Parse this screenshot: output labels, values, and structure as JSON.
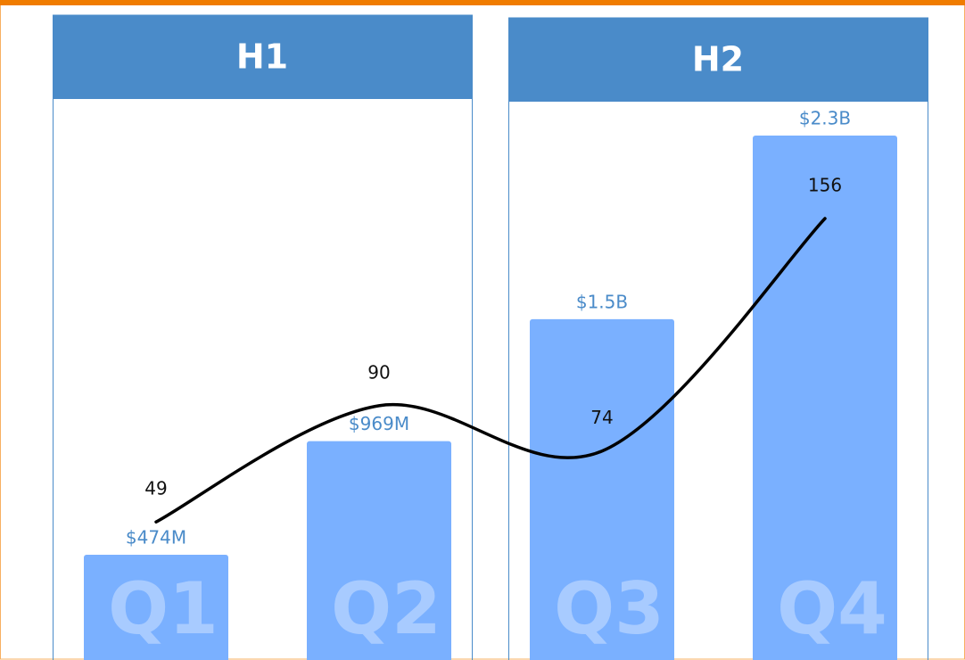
{
  "chart_data": {
    "type": "bar-line",
    "groups": [
      {
        "name": "H1",
        "categories": [
          0,
          1
        ]
      },
      {
        "name": "H2",
        "categories": [
          2,
          3
        ]
      }
    ],
    "categories": [
      "Q1",
      "Q2",
      "Q3",
      "Q4"
    ],
    "series": [
      {
        "name": null,
        "type": "bar",
        "color": "#7ab0ff",
        "values": [
          474000000,
          969000000,
          1500000000,
          2300000000
        ],
        "value_labels": [
          "$474M",
          "$969M",
          "$1.5B",
          "$2.3B"
        ]
      },
      {
        "name": null,
        "type": "line",
        "color": "#000000",
        "values": [
          49,
          90,
          74,
          156
        ]
      }
    ]
  }
}
